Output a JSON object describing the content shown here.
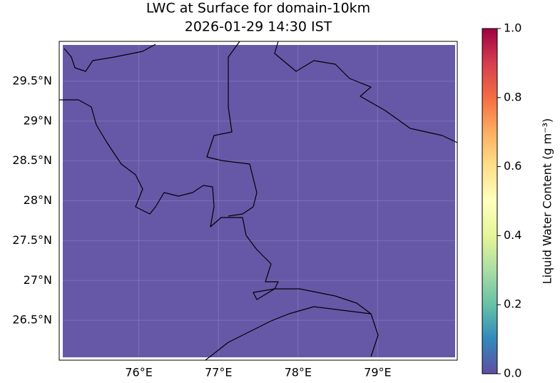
{
  "chart_data": {
    "type": "map",
    "title": "LWC at Surface for domain-10km",
    "subtitle": "2026-01-29 14:30 IST",
    "field_value": 0,
    "field_color": "#5e4fa2",
    "xlim": [
      75,
      80
    ],
    "ylim": [
      26,
      30
    ],
    "xticks": [
      {
        "value": 76,
        "label": "76°E"
      },
      {
        "value": 77,
        "label": "77°E"
      },
      {
        "value": 78,
        "label": "78°E"
      },
      {
        "value": 79,
        "label": "79°E"
      }
    ],
    "yticks": [
      {
        "value": 26.5,
        "label": "26.5°N"
      },
      {
        "value": 27,
        "label": "27°N"
      },
      {
        "value": 27.5,
        "label": "27.5°N"
      },
      {
        "value": 28,
        "label": "28°N"
      },
      {
        "value": 28.5,
        "label": "28.5°N"
      },
      {
        "value": 29,
        "label": "29°N"
      },
      {
        "value": 29.5,
        "label": "29.5°N"
      }
    ],
    "grid": true,
    "colorbar": {
      "label": "Liquid Water Content (g m⁻³)",
      "lim": [
        0,
        1
      ],
      "ticks": [
        {
          "value": 0,
          "label": "0.0"
        },
        0.2,
        0.4,
        0.6,
        0.8,
        {
          "value": 1,
          "label": "1.0"
        }
      ]
    }
  }
}
